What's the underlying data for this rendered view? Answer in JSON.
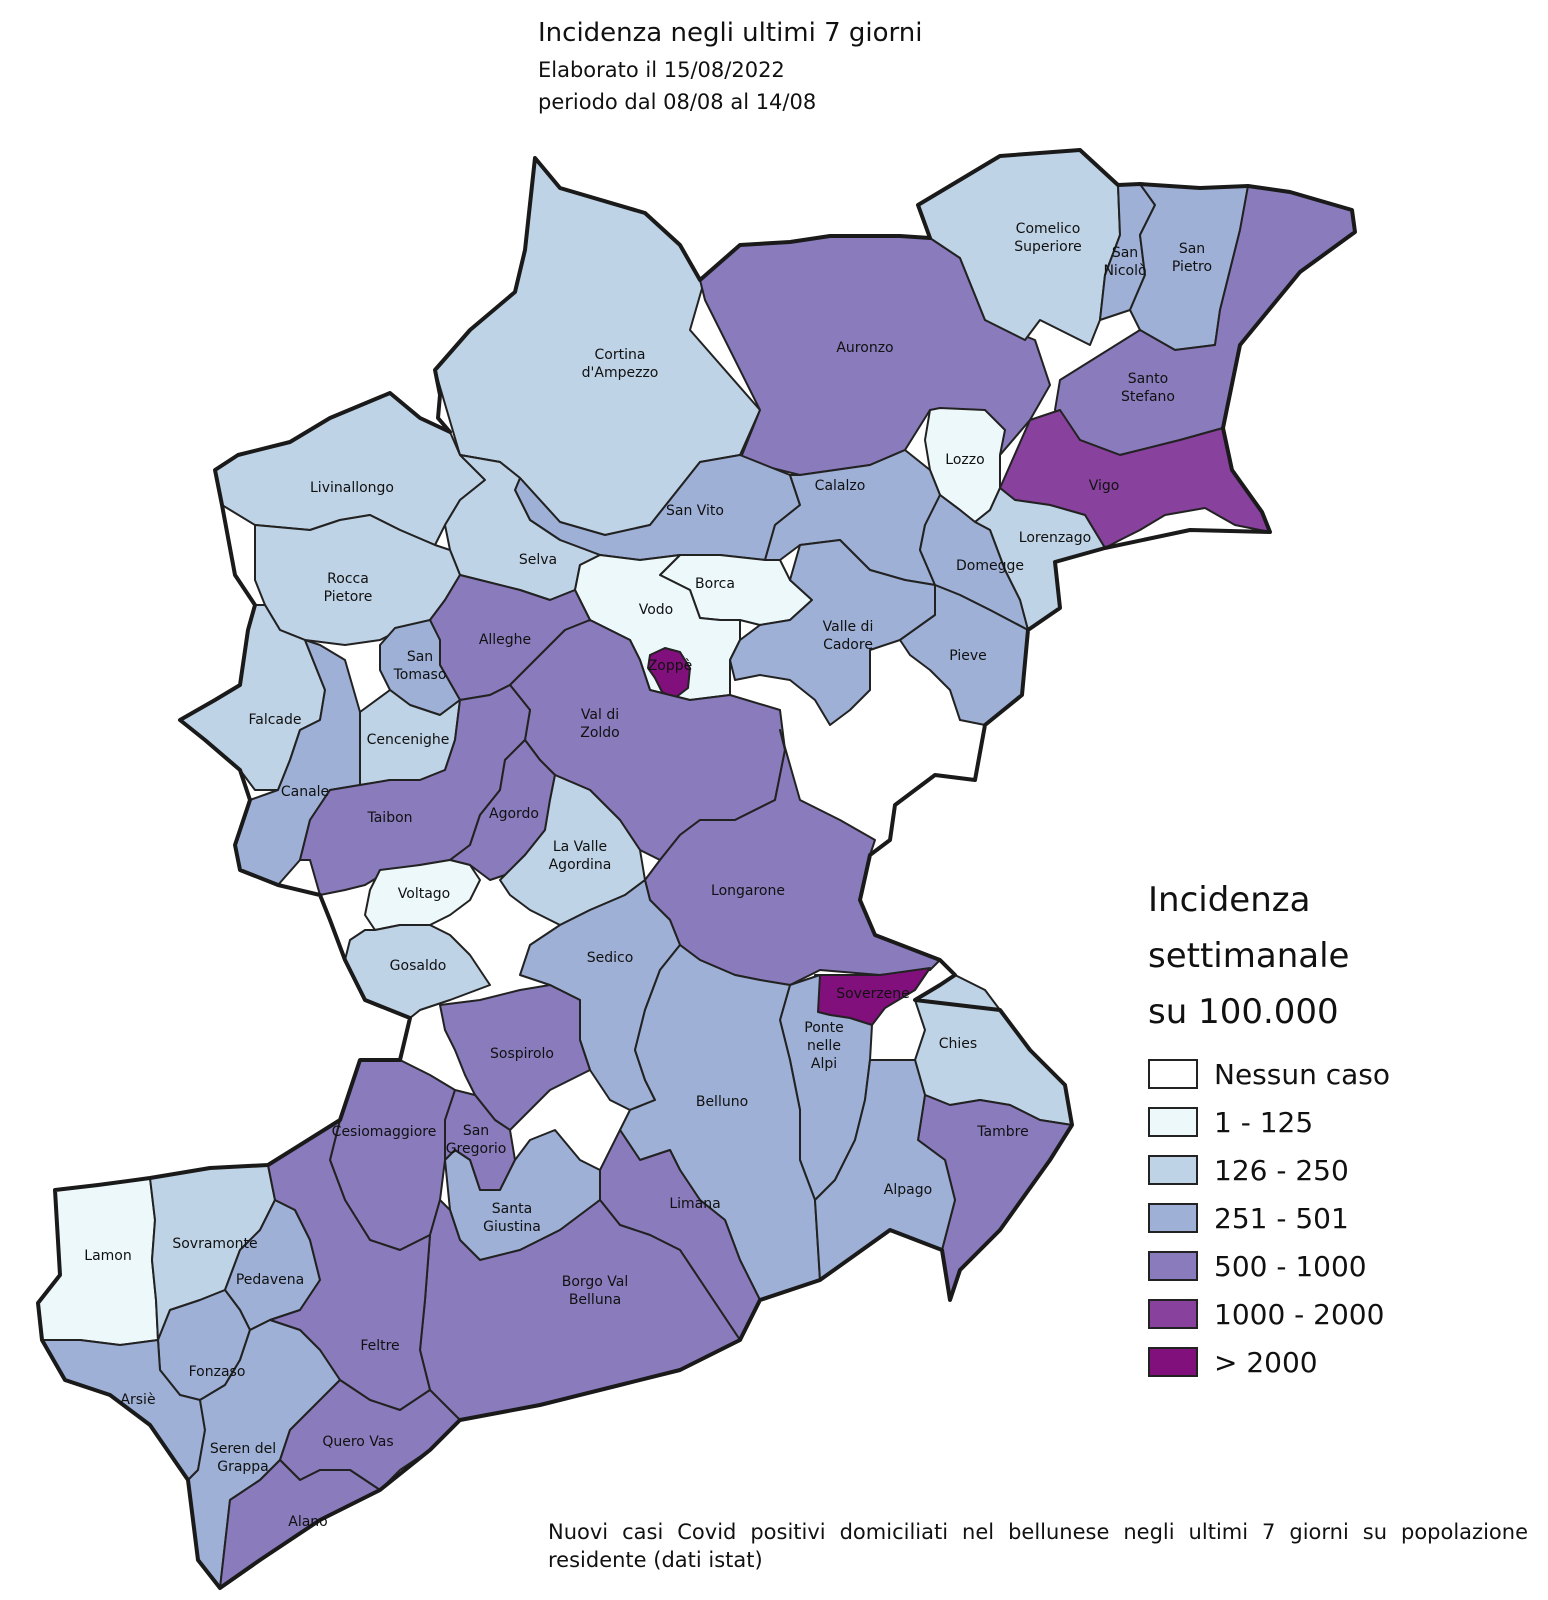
{
  "title": "Incidenza negli ultimi 7 giorni",
  "subtitle": "Elaborato il 15/08/2022",
  "period": "periodo dal 08/08 al 14/08",
  "legend": {
    "title": [
      "Incidenza",
      "settimanale",
      "su 100.000"
    ],
    "classes": [
      {
        "label": "Nessun caso",
        "color": "#ffffff"
      },
      {
        "label": "1 - 125",
        "color": "#edf8fb"
      },
      {
        "label": "126 - 250",
        "color": "#bfd3e6"
      },
      {
        "label": "251 - 501",
        "color": "#9eb0d6"
      },
      {
        "label": "500 - 1000",
        "color": "#8a7bbc"
      },
      {
        "label": "1000 - 2000",
        "color": "#88419d"
      },
      {
        "label": "> 2000",
        "color": "#810f7c"
      }
    ]
  },
  "footnote": "Nuovi casi Covid positivi domiciliati nel bellunese negli ultimi 7 giorni su popolazione residente (dati istat)",
  "municipalities": [
    {
      "name": "Cortina d'Ampezzo",
      "class": 2
    },
    {
      "name": "Auronzo",
      "class": 4
    },
    {
      "name": "Comelico Superiore",
      "class": 2
    },
    {
      "name": "San Nicolò",
      "class": 3
    },
    {
      "name": "San Pietro",
      "class": 3
    },
    {
      "name": "Santo Stefano",
      "class": 4
    },
    {
      "name": "Vigo",
      "class": 5
    },
    {
      "name": "Lozzo",
      "class": 1
    },
    {
      "name": "Lorenzago",
      "class": 2
    },
    {
      "name": "Livinallongo",
      "class": 2
    },
    {
      "name": "San Vito",
      "class": 3
    },
    {
      "name": "Calalzo",
      "class": 3
    },
    {
      "name": "Domegge",
      "class": 3
    },
    {
      "name": "Selva",
      "class": 2
    },
    {
      "name": "Borca",
      "class": 1
    },
    {
      "name": "Vodo",
      "class": 1
    },
    {
      "name": "Rocca Pietore",
      "class": 2
    },
    {
      "name": "Alleghe",
      "class": 4
    },
    {
      "name": "Zoppè",
      "class": 6
    },
    {
      "name": "Valle di Cadore",
      "class": 3
    },
    {
      "name": "Pieve",
      "class": 3
    },
    {
      "name": "San Tomaso",
      "class": 3
    },
    {
      "name": "Falcade",
      "class": 2
    },
    {
      "name": "Val di Zoldo",
      "class": 4
    },
    {
      "name": "Cencenighe",
      "class": 2
    },
    {
      "name": "Canale",
      "class": 3
    },
    {
      "name": "Taibon",
      "class": 4
    },
    {
      "name": "Agordo",
      "class": 4
    },
    {
      "name": "La Valle Agordina",
      "class": 2
    },
    {
      "name": "Voltago",
      "class": 1
    },
    {
      "name": "Longarone",
      "class": 4
    },
    {
      "name": "Gosaldo",
      "class": 2
    },
    {
      "name": "Sedico",
      "class": 3
    },
    {
      "name": "Soverzene",
      "class": 6
    },
    {
      "name": "Chies",
      "class": 2
    },
    {
      "name": "Sospirolo",
      "class": 4
    },
    {
      "name": "Ponte nelle Alpi",
      "class": 3
    },
    {
      "name": "Belluno",
      "class": 3
    },
    {
      "name": "Tambre",
      "class": 4
    },
    {
      "name": "Cesiomaggiore",
      "class": 4
    },
    {
      "name": "San Gregorio",
      "class": 4
    },
    {
      "name": "Alpago",
      "class": 3
    },
    {
      "name": "Limana",
      "class": 4
    },
    {
      "name": "Santa Giustina",
      "class": 3
    },
    {
      "name": "Lamon",
      "class": 1
    },
    {
      "name": "Sovramonte",
      "class": 2
    },
    {
      "name": "Pedavena",
      "class": 3
    },
    {
      "name": "Borgo Val Belluna",
      "class": 4
    },
    {
      "name": "Feltre",
      "class": 4
    },
    {
      "name": "Fonzaso",
      "class": 3
    },
    {
      "name": "Arsiè",
      "class": 3
    },
    {
      "name": "Seren del Grappa",
      "class": 3
    },
    {
      "name": "Quero Vas",
      "class": 4
    },
    {
      "name": "Alano",
      "class": 4
    }
  ]
}
